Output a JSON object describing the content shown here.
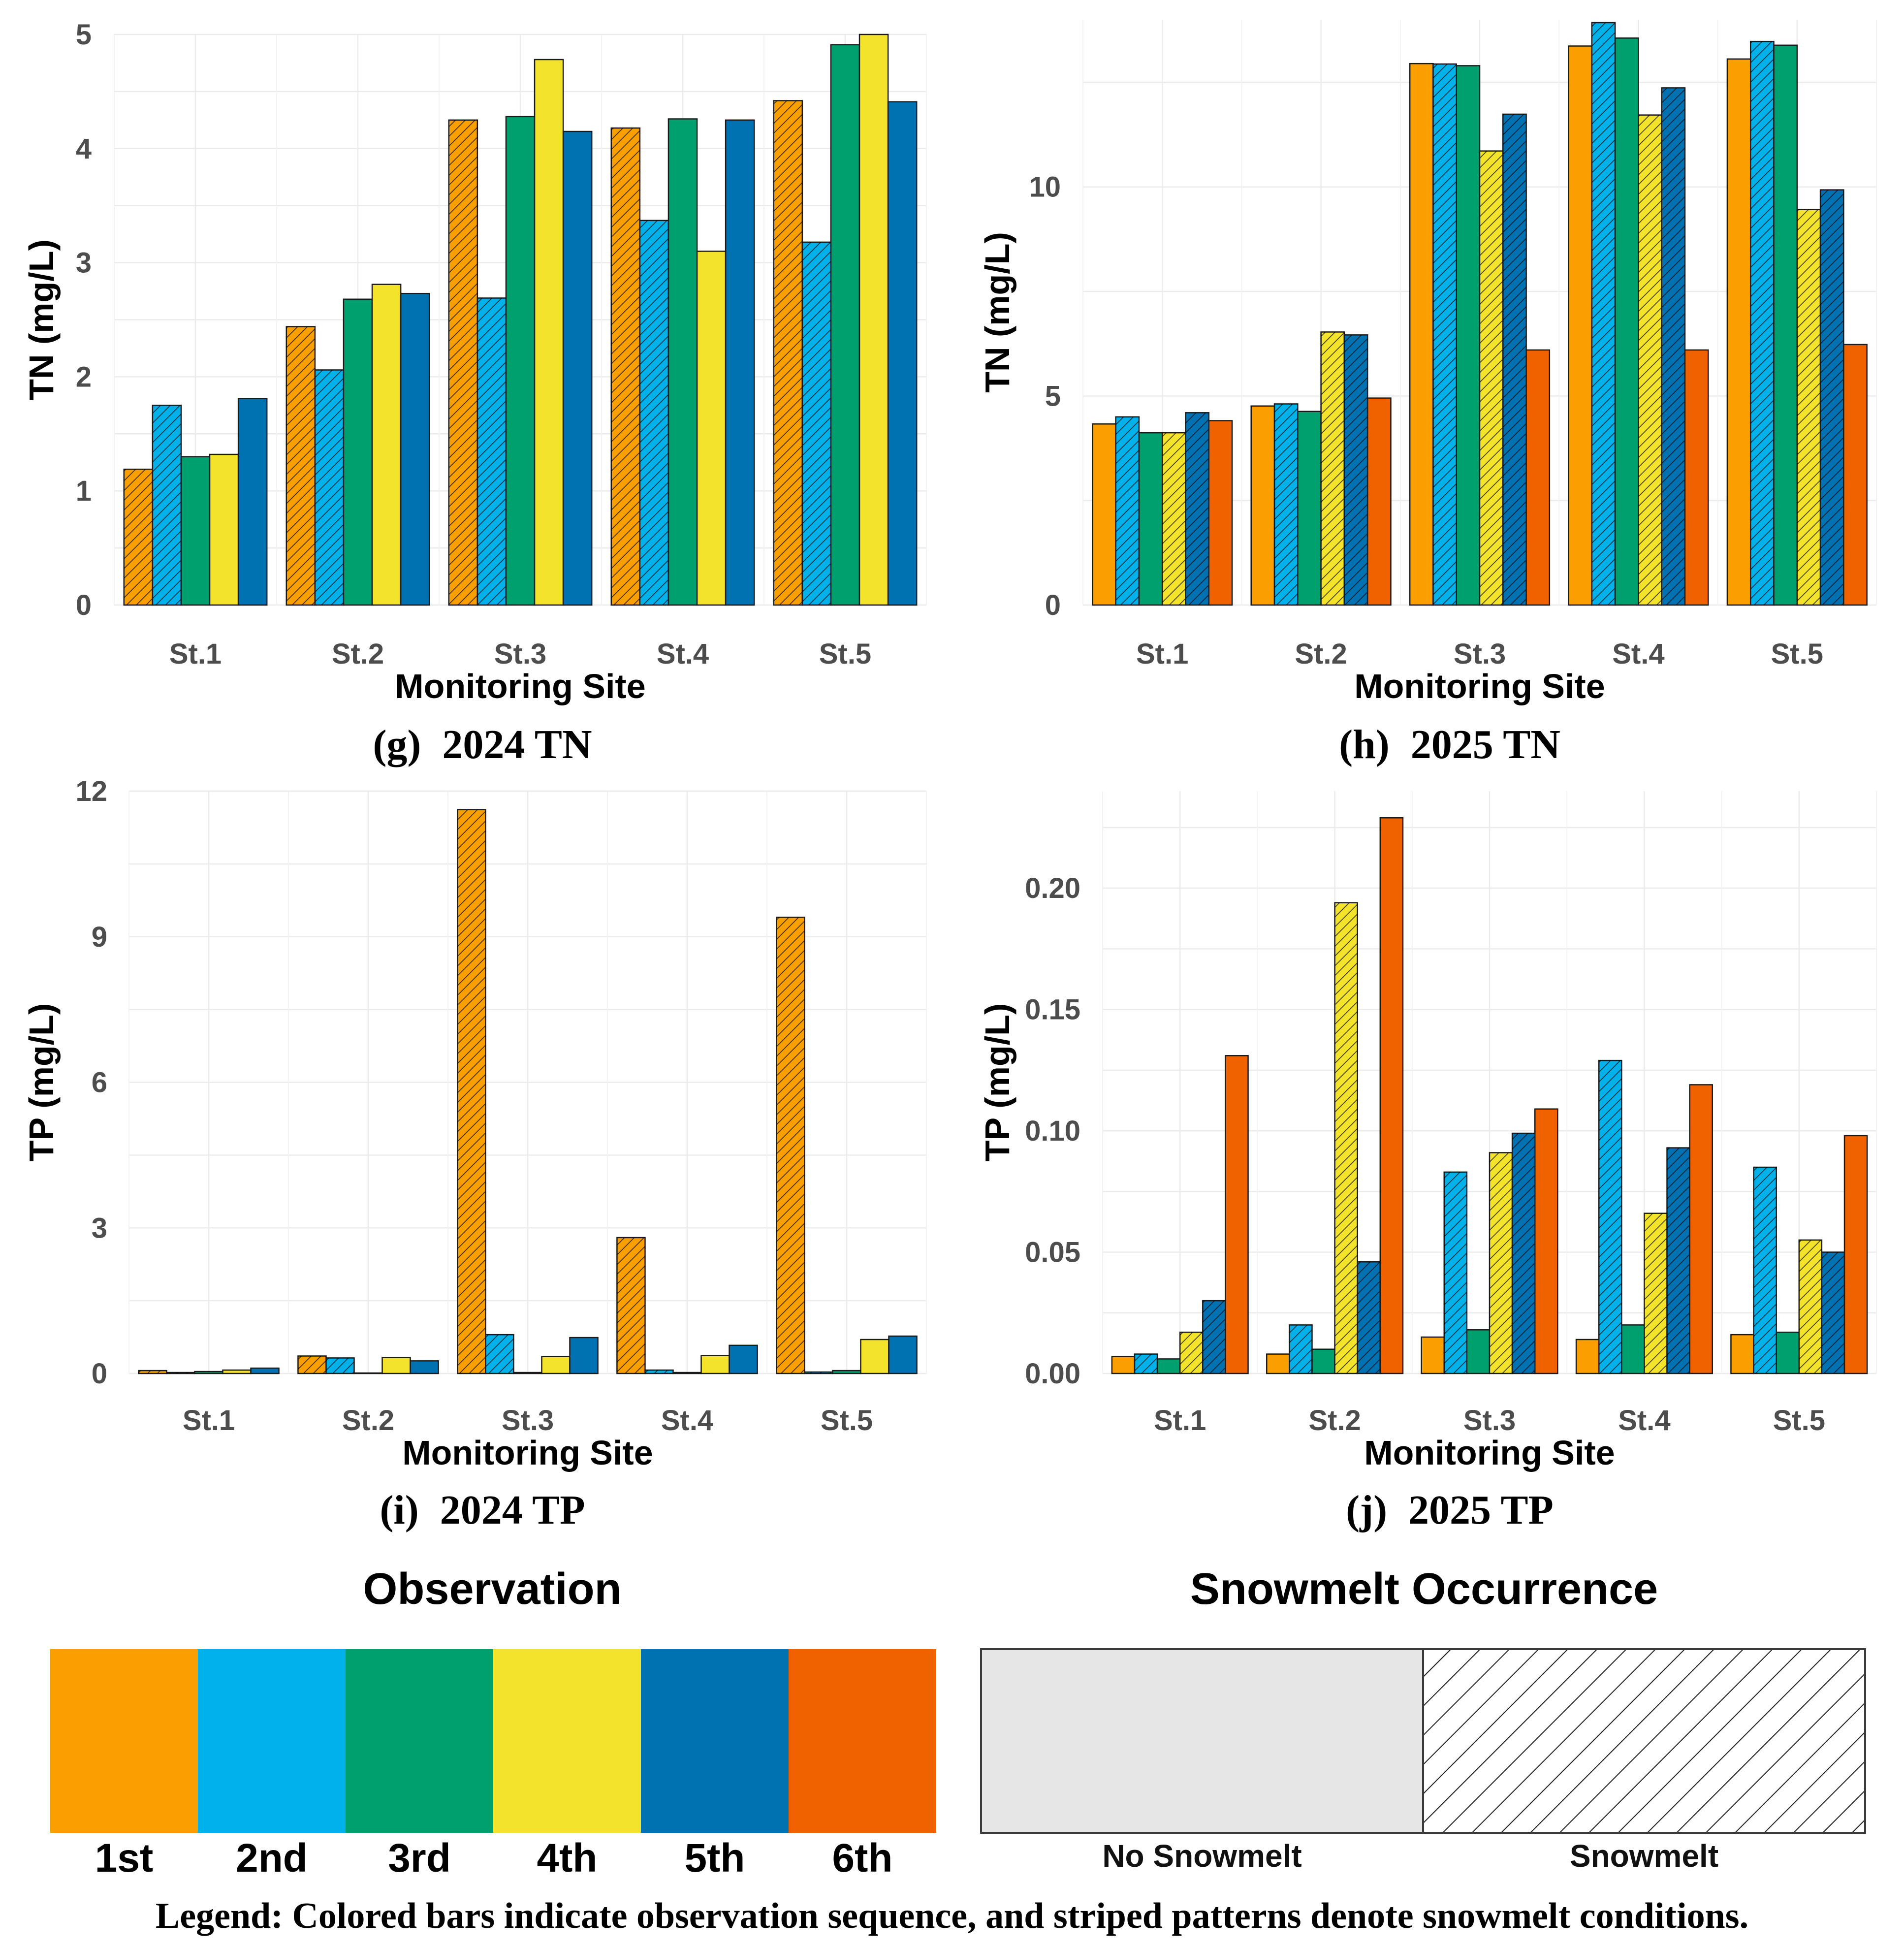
{
  "chart_data": [
    {
      "id": "g",
      "type": "bar",
      "title": "(g) 2024 TN",
      "caption_letter": "(g)",
      "caption_text": "2024 TN",
      "xlabel": "Monitoring Site",
      "ylabel": "TN (mg/L)",
      "categories": [
        "St.1",
        "St.2",
        "St.3",
        "St.4",
        "St.5"
      ],
      "ylim": [
        0,
        5.0
      ],
      "yticks": [
        0,
        1,
        2,
        3,
        4,
        5
      ],
      "ytick_labels": [
        "0",
        "1",
        "2",
        "3",
        "4",
        "5"
      ],
      "series": [
        {
          "name": "1st",
          "snowmelt": [
            true,
            true,
            true,
            true,
            true
          ],
          "values": [
            1.19,
            2.44,
            4.25,
            4.18,
            4.42
          ]
        },
        {
          "name": "2nd",
          "snowmelt": [
            true,
            true,
            true,
            true,
            true
          ],
          "values": [
            1.75,
            2.06,
            2.69,
            3.37,
            3.18
          ]
        },
        {
          "name": "3rd",
          "snowmelt": [
            false,
            false,
            false,
            false,
            false
          ],
          "values": [
            1.3,
            2.68,
            4.28,
            4.26,
            4.91
          ]
        },
        {
          "name": "4th",
          "snowmelt": [
            false,
            false,
            false,
            false,
            false
          ],
          "values": [
            1.32,
            2.81,
            4.78,
            3.1,
            5.0
          ]
        },
        {
          "name": "5th",
          "snowmelt": [
            false,
            false,
            false,
            false,
            false
          ],
          "values": [
            1.81,
            2.73,
            4.15,
            4.25,
            4.41
          ]
        }
      ]
    },
    {
      "id": "h",
      "type": "bar",
      "title": "(h) 2025 TN",
      "caption_letter": "(h)",
      "caption_text": "2025 TN",
      "xlabel": "Monitoring Site",
      "ylabel": "TN (mg/L)",
      "categories": [
        "St.1",
        "St.2",
        "St.3",
        "St.4",
        "St.5"
      ],
      "ylim": [
        0,
        14.0
      ],
      "yticks": [
        0,
        5,
        10
      ],
      "ytick_labels": [
        "0",
        "5",
        "10"
      ],
      "series": [
        {
          "name": "1st",
          "snowmelt": [
            false,
            false,
            false,
            false,
            false
          ],
          "values": [
            4.33,
            4.76,
            12.95,
            13.37,
            13.06
          ]
        },
        {
          "name": "2nd",
          "snowmelt": [
            true,
            true,
            true,
            true,
            true
          ],
          "values": [
            4.5,
            4.81,
            12.94,
            13.93,
            13.48
          ]
        },
        {
          "name": "3rd",
          "snowmelt": [
            false,
            false,
            false,
            false,
            false
          ],
          "values": [
            4.12,
            4.63,
            12.9,
            13.56,
            13.39
          ]
        },
        {
          "name": "4th",
          "snowmelt": [
            true,
            true,
            true,
            true,
            true
          ],
          "values": [
            4.12,
            6.53,
            10.86,
            11.72,
            9.46
          ]
        },
        {
          "name": "5th",
          "snowmelt": [
            true,
            true,
            true,
            true,
            true
          ],
          "values": [
            4.6,
            6.46,
            11.74,
            12.37,
            9.93
          ]
        },
        {
          "name": "6th",
          "snowmelt": [
            false,
            false,
            false,
            false,
            false
          ],
          "values": [
            4.41,
            4.95,
            6.1,
            6.1,
            6.23
          ]
        }
      ]
    },
    {
      "id": "i",
      "type": "bar",
      "title": "(i) 2024 TP",
      "caption_letter": "(i)",
      "caption_text": "2024 TP",
      "xlabel": "Monitoring Site",
      "ylabel": "TP (mg/L)",
      "categories": [
        "St.1",
        "St.2",
        "St.3",
        "St.4",
        "St.5"
      ],
      "ylim": [
        0,
        12.0
      ],
      "yticks": [
        0,
        3,
        6,
        9,
        12
      ],
      "ytick_labels": [
        "0",
        "3",
        "6",
        "9",
        "12"
      ],
      "series": [
        {
          "name": "1st",
          "snowmelt": [
            true,
            true,
            true,
            true,
            true
          ],
          "values": [
            0.06,
            0.36,
            11.62,
            2.8,
            9.4
          ]
        },
        {
          "name": "2nd",
          "snowmelt": [
            true,
            true,
            true,
            true,
            true
          ],
          "values": [
            0.02,
            0.32,
            0.8,
            0.07,
            0.03
          ]
        },
        {
          "name": "3rd",
          "snowmelt": [
            false,
            false,
            false,
            false,
            false
          ],
          "values": [
            0.04,
            0.01,
            0.02,
            0.02,
            0.06
          ]
        },
        {
          "name": "4th",
          "snowmelt": [
            false,
            false,
            false,
            false,
            false
          ],
          "values": [
            0.07,
            0.33,
            0.35,
            0.37,
            0.7
          ]
        },
        {
          "name": "5th",
          "snowmelt": [
            false,
            false,
            false,
            false,
            false
          ],
          "values": [
            0.11,
            0.26,
            0.74,
            0.58,
            0.77
          ]
        }
      ]
    },
    {
      "id": "j",
      "type": "bar",
      "title": "(j) 2025 TP",
      "caption_letter": "(j)",
      "caption_text": "2025 TP",
      "xlabel": "Monitoring Site",
      "ylabel": "TP (mg/L)",
      "categories": [
        "St.1",
        "St.2",
        "St.3",
        "St.4",
        "St.5"
      ],
      "ylim": [
        0,
        0.24
      ],
      "yticks": [
        0,
        0.05,
        0.1,
        0.15,
        0.2
      ],
      "ytick_labels": [
        "0.00",
        "0.05",
        "0.10",
        "0.15",
        "0.20"
      ],
      "series": [
        {
          "name": "1st",
          "snowmelt": [
            false,
            false,
            false,
            false,
            false
          ],
          "values": [
            0.007,
            0.008,
            0.015,
            0.014,
            0.016
          ]
        },
        {
          "name": "2nd",
          "snowmelt": [
            true,
            true,
            true,
            true,
            true
          ],
          "values": [
            0.008,
            0.02,
            0.083,
            0.129,
            0.085
          ]
        },
        {
          "name": "3rd",
          "snowmelt": [
            false,
            false,
            false,
            false,
            false
          ],
          "values": [
            0.006,
            0.01,
            0.018,
            0.02,
            0.017
          ]
        },
        {
          "name": "4th",
          "snowmelt": [
            true,
            true,
            true,
            true,
            true
          ],
          "values": [
            0.017,
            0.194,
            0.091,
            0.066,
            0.055
          ]
        },
        {
          "name": "5th",
          "snowmelt": [
            true,
            true,
            true,
            true,
            true
          ],
          "values": [
            0.03,
            0.046,
            0.099,
            0.093,
            0.05
          ]
        },
        {
          "name": "6th",
          "snowmelt": [
            false,
            false,
            false,
            false,
            false
          ],
          "values": [
            0.131,
            0.229,
            0.109,
            0.119,
            0.098
          ]
        }
      ]
    }
  ],
  "legend": {
    "observation_title": "Observation",
    "observation_items": [
      {
        "label": "1st",
        "color": "#F9A000"
      },
      {
        "label": "2nd",
        "color": "#00B1EA"
      },
      {
        "label": "3rd",
        "color": "#009F6E"
      },
      {
        "label": "4th",
        "color": "#F4E32B"
      },
      {
        "label": "5th",
        "color": "#0072B2"
      },
      {
        "label": "6th",
        "color": "#F06200"
      }
    ],
    "snowmelt_title": "Snowmelt Occurrence",
    "snowmelt_items": [
      {
        "label": "No Snowmelt",
        "striped": false
      },
      {
        "label": "Snowmelt",
        "striped": true
      }
    ],
    "note": "Legend: Colored bars indicate observation sequence, and striped patterns denote snowmelt conditions."
  },
  "colors": {
    "1st": "#F9A000",
    "2nd": "#00B1EA",
    "3rd": "#009F6E",
    "4th": "#F4E32B",
    "5th": "#0072B2",
    "6th": "#F06200",
    "grid": "#E6E6E6",
    "axis_text": "#4D4D4D",
    "no_snowmelt_fill": "#E6E6E6"
  }
}
